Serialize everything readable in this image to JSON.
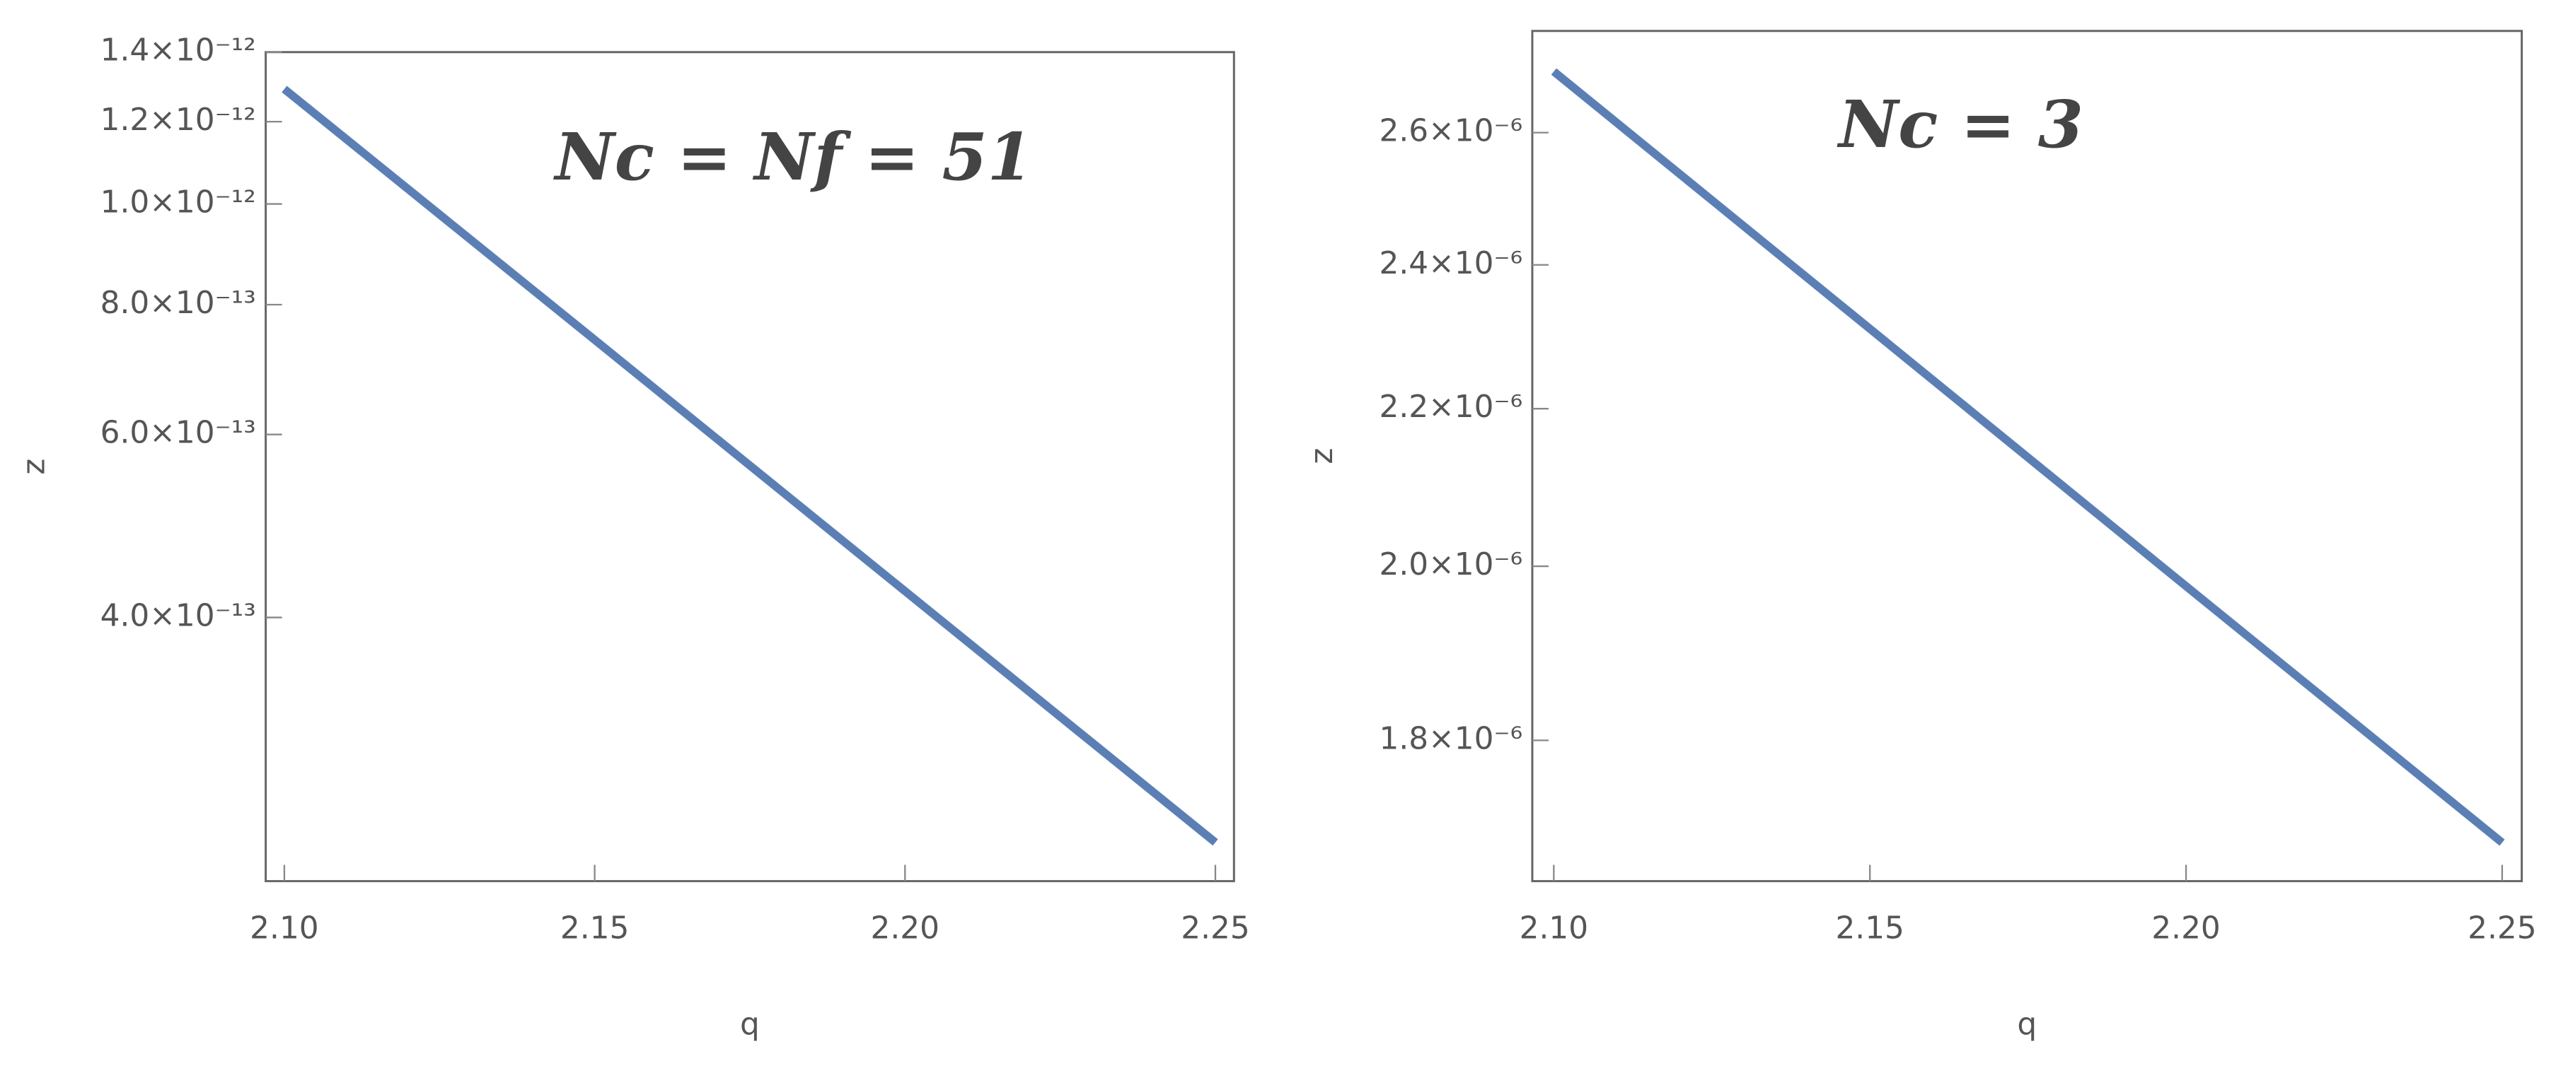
{
  "chart_data": [
    {
      "type": "line",
      "annotation": "Nc = Nf = 51",
      "x_label": "q",
      "y_label": "z",
      "x": [
        2.1,
        2.15,
        2.2,
        2.25
      ],
      "values": [
        1.29e-12,
        7.4e-13,
        4.24e-13,
        2.43e-13
      ],
      "color": "#5b7fb5",
      "log_y": true,
      "xlim": [
        2.097,
        2.253
      ],
      "ylim": [
        2.23e-13,
        1.4e-12
      ],
      "xticks": [
        {
          "value": 2.1,
          "label": "2.10"
        },
        2.15,
        {
          "value": 2.2,
          "label": "2.20"
        },
        2.25
      ],
      "yticks": [
        {
          "value": 4e-13,
          "label": "4.0×10⁻¹³"
        },
        {
          "value": 6e-13,
          "label": "6.0×10⁻¹³"
        },
        {
          "value": 8e-13,
          "label": "8.0×10⁻¹³"
        },
        {
          "value": 1e-12,
          "label": "1.0×10⁻¹²"
        },
        {
          "value": 1.2e-12,
          "label": "1.2×10⁻¹²"
        },
        {
          "value": 1.4e-12,
          "label": "1.4×10⁻¹²"
        }
      ]
    },
    {
      "type": "line",
      "annotation": "Nc = 3",
      "x_label": "q",
      "y_label": "z",
      "x": [
        2.1,
        2.15,
        2.2,
        2.25
      ],
      "values": [
        2.698e-06,
        2.309e-06,
        1.976e-06,
        1.692e-06
      ],
      "color": "#5b7fb5",
      "log_y": true,
      "xlim": [
        2.0966,
        2.2531
      ],
      "ylim": [
        1.653e-06,
        2.765e-06
      ],
      "xticks": [
        {
          "value": 2.1,
          "label": "2.10"
        },
        2.15,
        {
          "value": 2.2,
          "label": "2.20"
        },
        2.25
      ],
      "yticks": [
        {
          "value": 1.8e-06,
          "label": "1.8×10⁻⁶"
        },
        {
          "value": 2e-06,
          "label": "2.0×10⁻⁶"
        },
        {
          "value": 2.2e-06,
          "label": "2.2×10⁻⁶"
        },
        {
          "value": 2.4e-06,
          "label": "2.4×10⁻⁶"
        },
        {
          "value": 2.6e-06,
          "label": "2.6×10⁻⁶"
        }
      ]
    }
  ]
}
